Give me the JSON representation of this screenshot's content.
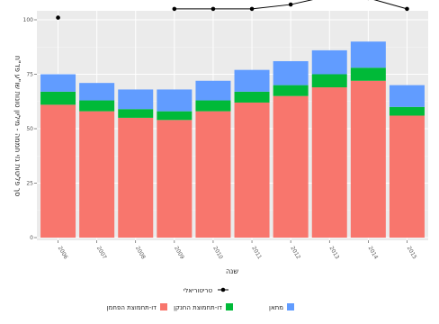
{
  "chart_data": {
    "type": "bar",
    "title": "",
    "xlabel": "שנה",
    "ylabel": "סך פליטות גזי חממה - מיליון טונות שו\"ע פד\"ח",
    "ylim": [
      0,
      100
    ],
    "yticks": [
      "0",
      "25",
      "50",
      "75",
      "100"
    ],
    "grid": true,
    "categories": [
      "2006",
      "2007",
      "2008",
      "2009",
      "2010",
      "2011",
      "2012",
      "2013",
      "2014",
      "2015"
    ],
    "series": [
      {
        "name": "דו-תחמוצת הפחמן",
        "color": "#f8766d",
        "values": [
          61,
          58,
          55,
          54,
          58,
          62,
          65,
          69,
          72,
          56
        ]
      },
      {
        "name": "דו-תחמוצת החנקן",
        "color": "#00ba38",
        "values": [
          6,
          5,
          4,
          4,
          5,
          5,
          5,
          6,
          6,
          4
        ]
      },
      {
        "name": "מתאן",
        "color": "#619cff",
        "values": [
          8,
          8,
          9,
          10,
          9,
          10,
          11,
          11,
          12,
          10
        ]
      }
    ],
    "line": {
      "name": "טריטוריאלי",
      "color": "#000000",
      "values": [
        101,
        null,
        null,
        105,
        105,
        105,
        107,
        111,
        110,
        105
      ]
    },
    "legend": {
      "placement": "bottom"
    }
  }
}
